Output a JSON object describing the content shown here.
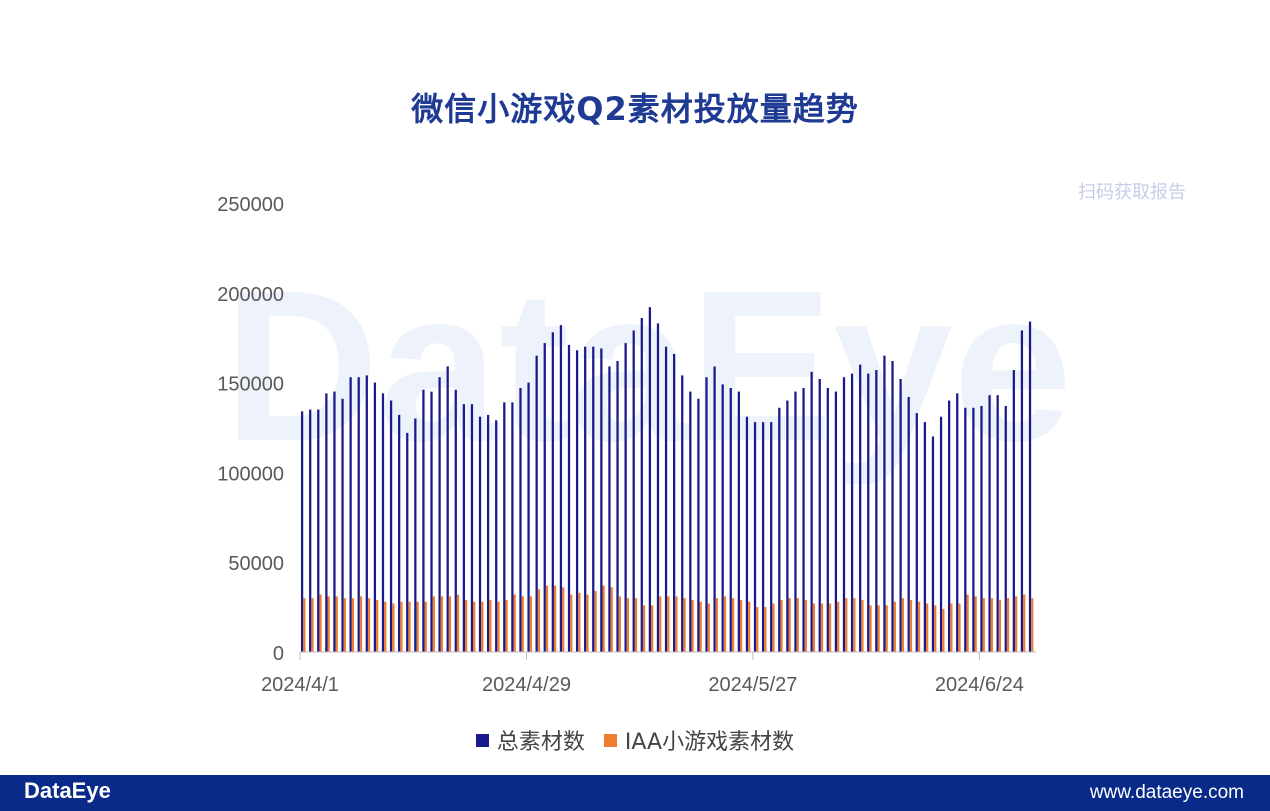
{
  "title": "微信小游戏Q2素材投放量趋势",
  "footer": {
    "brand": "DataEye",
    "site": "www.dataeye.com"
  },
  "watermark": "DataEye",
  "qr_caption": "扫码获取报告",
  "colors": {
    "total": "#1a1a8c",
    "iaa": "#ed7d31",
    "footer": "#0a2a8a",
    "title": "#1f3a93"
  },
  "chart_data": {
    "type": "bar",
    "title": "微信小游戏Q2素材投放量趋势",
    "xlabel": "",
    "ylabel": "",
    "ylim": [
      0,
      250000
    ],
    "yticks": [
      "0",
      "50000",
      "100000",
      "150000",
      "200000",
      "250000"
    ],
    "xticks": [
      "2024/4/1",
      "2024/4/29",
      "2024/5/27",
      "2024/6/24"
    ],
    "xtick_indices": [
      0,
      28,
      56,
      84
    ],
    "grid": false,
    "legend_position": "bottom",
    "categories_start": "2024/4/1",
    "categories_end": "2024/6/30",
    "series": [
      {
        "name": "总素材数",
        "values": [
          134000,
          135000,
          135000,
          144000,
          145000,
          141000,
          153000,
          153000,
          154000,
          150000,
          144000,
          140000,
          132000,
          122000,
          130000,
          146000,
          145000,
          153000,
          159000,
          146000,
          138000,
          138000,
          131000,
          132000,
          129000,
          139000,
          139000,
          147000,
          150000,
          165000,
          172000,
          178000,
          182000,
          171000,
          168000,
          170000,
          170000,
          169000,
          159000,
          162000,
          172000,
          179000,
          186000,
          192000,
          183000,
          170000,
          166000,
          154000,
          145000,
          141000,
          153000,
          159000,
          149000,
          147000,
          145000,
          131000,
          128000,
          128000,
          128000,
          136000,
          140000,
          145000,
          147000,
          156000,
          152000,
          147000,
          145000,
          153000,
          155000,
          160000,
          155000,
          157000,
          165000,
          162000,
          152000,
          142000,
          133000,
          128000,
          120000,
          131000,
          140000,
          144000,
          136000,
          136000,
          137000,
          143000,
          143000,
          137000,
          157000,
          179000,
          184000
        ]
      },
      {
        "name": "IAA小游戏素材数",
        "values": [
          30000,
          30000,
          32000,
          31000,
          31000,
          30000,
          30000,
          31000,
          30000,
          29000,
          28000,
          27000,
          28000,
          28000,
          28000,
          28000,
          31000,
          31000,
          31000,
          32000,
          29000,
          28000,
          28000,
          29000,
          28000,
          29000,
          32000,
          31000,
          31000,
          35000,
          37000,
          37000,
          36000,
          32000,
          33000,
          32000,
          34000,
          37000,
          36000,
          31000,
          30000,
          30000,
          26000,
          26000,
          31000,
          31000,
          31000,
          30000,
          29000,
          28000,
          27000,
          30000,
          31000,
          30000,
          29000,
          28000,
          25000,
          25000,
          27000,
          29000,
          30000,
          30000,
          29000,
          27000,
          27000,
          27000,
          28000,
          30000,
          30000,
          29000,
          26000,
          26000,
          26000,
          28000,
          30000,
          29000,
          28000,
          27000,
          26000,
          24000,
          27000,
          27000,
          32000,
          31000,
          30000,
          30000,
          29000,
          30000,
          31000,
          32000,
          30000
        ]
      }
    ]
  }
}
